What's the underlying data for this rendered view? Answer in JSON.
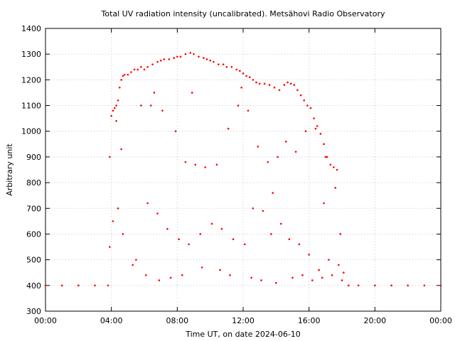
{
  "chart_data": {
    "type": "scatter",
    "title": "Total UV radiation intensity (uncalibrated). Metsähovi Radio Observatory",
    "xlabel": "Time UT, on date 2024-06-10",
    "ylabel": "Arbitrary unit",
    "xlim": [
      0,
      24
    ],
    "ylim": [
      300,
      1400
    ],
    "x_tick_labels": [
      "00:00",
      "04:00",
      "08:00",
      "12:00",
      "16:00",
      "20:00",
      "00:00"
    ],
    "x_tick_values": [
      0,
      4,
      8,
      12,
      16,
      20,
      24
    ],
    "y_tick_values": [
      300,
      400,
      500,
      600,
      700,
      800,
      900,
      1000,
      1100,
      1200,
      1300,
      1400
    ],
    "grid": true,
    "series": [
      {
        "color": "#ff0000",
        "marker": "dot",
        "x": [
          0,
          1,
          2,
          3,
          3.8,
          3.9,
          4.0,
          4.1,
          4.2,
          4.3,
          4.4,
          4.5,
          4.6,
          4.7,
          4.8,
          5.0,
          5.2,
          5.4,
          5.6,
          5.8,
          6.0,
          6.2,
          6.5,
          6.8,
          7.0,
          7.2,
          7.5,
          7.8,
          8.0,
          8.2,
          8.5,
          8.8,
          9.0,
          9.3,
          9.6,
          9.8,
          10.0,
          10.2,
          10.5,
          10.8,
          11.0,
          11.3,
          11.6,
          11.8,
          12.0,
          12.2,
          12.4,
          12.6,
          12.8,
          13.0,
          13.3,
          13.6,
          13.9,
          14.2,
          14.5,
          14.7,
          14.9,
          15.1,
          15.3,
          15.5,
          15.7,
          15.9,
          16.1,
          16.3,
          16.5,
          16.7,
          16.9,
          17.1,
          17.3,
          17.5,
          17.7,
          17.9,
          18.1,
          18.4,
          19,
          20,
          21,
          22,
          23,
          24,
          3.9,
          4.1,
          4.4,
          4.7,
          5.5,
          6.2,
          6.8,
          7.4,
          8.1,
          8.7,
          9.4,
          10.1,
          10.7,
          11.4,
          12.1,
          12.6,
          13.2,
          13.7,
          14.3,
          14.8,
          15.4,
          16.0,
          16.6,
          17.2,
          17.8,
          5.8,
          6.6,
          7.1,
          7.9,
          8.5,
          9.1,
          9.7,
          10.4,
          11.1,
          11.7,
          12.3,
          12.9,
          13.5,
          14.1,
          14.6,
          15.2,
          15.8,
          16.4,
          17.0,
          17.6,
          4.6,
          5.3,
          6.1,
          6.9,
          7.6,
          8.3,
          9.5,
          10.6,
          11.2,
          12.5,
          13.1,
          14.0,
          15.0,
          15.6,
          16.2,
          16.8,
          17.4,
          18.0,
          4.3,
          6.4,
          8.9,
          11.9,
          13.8,
          16.9
        ],
        "y": [
          400,
          400,
          400,
          400,
          400,
          900,
          1060,
          1080,
          1090,
          1100,
          1120,
          1170,
          1200,
          1215,
          1220,
          1220,
          1230,
          1240,
          1240,
          1250,
          1240,
          1250,
          1260,
          1270,
          1275,
          1280,
          1280,
          1285,
          1290,
          1290,
          1300,
          1305,
          1300,
          1290,
          1285,
          1280,
          1275,
          1270,
          1260,
          1260,
          1250,
          1250,
          1240,
          1235,
          1225,
          1215,
          1210,
          1200,
          1190,
          1185,
          1185,
          1180,
          1170,
          1160,
          1180,
          1190,
          1185,
          1180,
          1160,
          1140,
          1120,
          1100,
          1090,
          1050,
          1020,
          990,
          950,
          900,
          870,
          860,
          850,
          600,
          450,
          400,
          400,
          400,
          400,
          400,
          400,
          400,
          550,
          650,
          700,
          600,
          500,
          720,
          680,
          620,
          580,
          560,
          600,
          640,
          620,
          580,
          560,
          700,
          690,
          600,
          640,
          580,
          560,
          520,
          460,
          500,
          480,
          1100,
          1150,
          1080,
          1000,
          880,
          870,
          860,
          870,
          1010,
          1100,
          1080,
          940,
          880,
          900,
          960,
          920,
          1000,
          1010,
          900,
          780,
          930,
          480,
          440,
          420,
          430,
          440,
          470,
          460,
          440,
          430,
          420,
          410,
          430,
          440,
          420,
          430,
          440,
          420,
          1040,
          1100,
          1150,
          1170,
          760,
          720
        ]
      }
    ]
  }
}
